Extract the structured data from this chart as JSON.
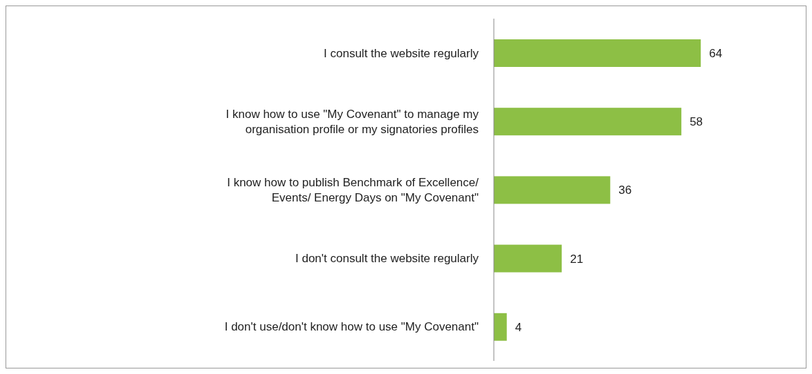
{
  "chart_data": {
    "type": "bar",
    "orientation": "horizontal",
    "categories": [
      "I consult the website regularly",
      "I know how to use \"My Covenant\" to manage my organisation profile or my signatories profiles",
      "I know how to publish Benchmark of Excellence/ Events/ Energy Days on \"My Covenant\"",
      "I don't consult the website regularly",
      "I don't use/don't know how to use \"My Covenant\""
    ],
    "values": [
      64,
      58,
      36,
      21,
      4
    ],
    "color": "#8dbf45",
    "data_labels": true
  }
}
